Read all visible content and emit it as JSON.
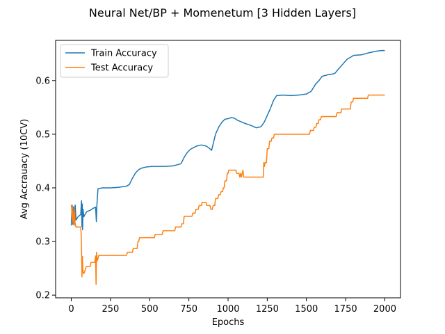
{
  "chart_data": {
    "type": "line",
    "title": "Neural Net/BP + Momenetum [3 Hidden Layers]",
    "xlabel": "Epochs",
    "ylabel": "Avg Accrauacy (10CV)",
    "xlim": [
      -100,
      2100
    ],
    "ylim": [
      0.195,
      0.675
    ],
    "xticks": [
      0,
      250,
      500,
      750,
      1000,
      1250,
      1500,
      1750,
      2000
    ],
    "yticks": [
      0.2,
      0.3,
      0.4,
      0.5,
      0.6
    ],
    "ytick_labels": [
      "0.2",
      "0.3",
      "0.4",
      "0.5",
      "0.6"
    ],
    "grid": false,
    "legend_position": "top-left",
    "series": [
      {
        "name": "Train Accuracy",
        "color": "#1f77b4",
        "points": [
          [
            0,
            0.33
          ],
          [
            5,
            0.368
          ],
          [
            10,
            0.332
          ],
          [
            15,
            0.365
          ],
          [
            20,
            0.335
          ],
          [
            25,
            0.368
          ],
          [
            30,
            0.34
          ],
          [
            40,
            0.345
          ],
          [
            50,
            0.348
          ],
          [
            60,
            0.35
          ],
          [
            65,
            0.376
          ],
          [
            68,
            0.328
          ],
          [
            70,
            0.37
          ],
          [
            72,
            0.322
          ],
          [
            75,
            0.36
          ],
          [
            80,
            0.346
          ],
          [
            90,
            0.352
          ],
          [
            100,
            0.356
          ],
          [
            120,
            0.358
          ],
          [
            140,
            0.362
          ],
          [
            155,
            0.364
          ],
          [
            160,
            0.337
          ],
          [
            163,
            0.366
          ],
          [
            170,
            0.398
          ],
          [
            180,
            0.399
          ],
          [
            200,
            0.4
          ],
          [
            250,
            0.4
          ],
          [
            300,
            0.401
          ],
          [
            350,
            0.403
          ],
          [
            370,
            0.406
          ],
          [
            390,
            0.418
          ],
          [
            410,
            0.428
          ],
          [
            430,
            0.434
          ],
          [
            450,
            0.437
          ],
          [
            480,
            0.439
          ],
          [
            520,
            0.44
          ],
          [
            600,
            0.44
          ],
          [
            650,
            0.441
          ],
          [
            700,
            0.445
          ],
          [
            720,
            0.457
          ],
          [
            740,
            0.466
          ],
          [
            760,
            0.472
          ],
          [
            800,
            0.478
          ],
          [
            830,
            0.48
          ],
          [
            860,
            0.478
          ],
          [
            880,
            0.474
          ],
          [
            895,
            0.47
          ],
          [
            905,
            0.482
          ],
          [
            920,
            0.5
          ],
          [
            940,
            0.513
          ],
          [
            960,
            0.522
          ],
          [
            980,
            0.528
          ],
          [
            1000,
            0.529
          ],
          [
            1020,
            0.531
          ],
          [
            1040,
            0.53
          ],
          [
            1060,
            0.526
          ],
          [
            1100,
            0.521
          ],
          [
            1150,
            0.516
          ],
          [
            1180,
            0.512
          ],
          [
            1210,
            0.514
          ],
          [
            1230,
            0.522
          ],
          [
            1250,
            0.535
          ],
          [
            1270,
            0.548
          ],
          [
            1290,
            0.563
          ],
          [
            1310,
            0.572
          ],
          [
            1350,
            0.573
          ],
          [
            1400,
            0.572
          ],
          [
            1450,
            0.573
          ],
          [
            1500,
            0.575
          ],
          [
            1530,
            0.58
          ],
          [
            1560,
            0.594
          ],
          [
            1580,
            0.6
          ],
          [
            1600,
            0.608
          ],
          [
            1640,
            0.611
          ],
          [
            1680,
            0.613
          ],
          [
            1700,
            0.62
          ],
          [
            1730,
            0.63
          ],
          [
            1760,
            0.64
          ],
          [
            1790,
            0.645
          ],
          [
            1800,
            0.647
          ],
          [
            1850,
            0.648
          ],
          [
            1900,
            0.652
          ],
          [
            1950,
            0.655
          ],
          [
            1980,
            0.656
          ],
          [
            2000,
            0.656
          ]
        ]
      },
      {
        "name": "Test Accuracy",
        "color": "#ff7f0e",
        "points": [
          [
            0,
            0.368
          ],
          [
            3,
            0.36
          ],
          [
            6,
            0.34
          ],
          [
            9,
            0.365
          ],
          [
            12,
            0.335
          ],
          [
            15,
            0.355
          ],
          [
            18,
            0.33
          ],
          [
            21,
            0.36
          ],
          [
            24,
            0.335
          ],
          [
            27,
            0.33
          ],
          [
            30,
            0.327
          ],
          [
            60,
            0.327
          ],
          [
            63,
            0.313
          ],
          [
            66,
            0.273
          ],
          [
            68,
            0.234
          ],
          [
            71,
            0.272
          ],
          [
            74,
            0.244
          ],
          [
            80,
            0.24
          ],
          [
            90,
            0.248
          ],
          [
            95,
            0.253
          ],
          [
            100,
            0.253
          ],
          [
            120,
            0.253
          ],
          [
            125,
            0.261
          ],
          [
            150,
            0.261
          ],
          [
            155,
            0.273
          ],
          [
            158,
            0.22
          ],
          [
            161,
            0.28
          ],
          [
            165,
            0.264
          ],
          [
            170,
            0.268
          ],
          [
            175,
            0.274
          ],
          [
            350,
            0.274
          ],
          [
            360,
            0.28
          ],
          [
            390,
            0.28
          ],
          [
            395,
            0.287
          ],
          [
            420,
            0.287
          ],
          [
            425,
            0.3
          ],
          [
            430,
            0.3
          ],
          [
            435,
            0.307
          ],
          [
            530,
            0.307
          ],
          [
            535,
            0.313
          ],
          [
            580,
            0.313
          ],
          [
            585,
            0.32
          ],
          [
            660,
            0.32
          ],
          [
            665,
            0.327
          ],
          [
            700,
            0.327
          ],
          [
            705,
            0.333
          ],
          [
            715,
            0.333
          ],
          [
            720,
            0.347
          ],
          [
            770,
            0.347
          ],
          [
            775,
            0.353
          ],
          [
            790,
            0.353
          ],
          [
            795,
            0.36
          ],
          [
            810,
            0.36
          ],
          [
            815,
            0.367
          ],
          [
            830,
            0.367
          ],
          [
            835,
            0.373
          ],
          [
            860,
            0.373
          ],
          [
            865,
            0.367
          ],
          [
            885,
            0.367
          ],
          [
            890,
            0.36
          ],
          [
            900,
            0.36
          ],
          [
            905,
            0.367
          ],
          [
            915,
            0.367
          ],
          [
            920,
            0.38
          ],
          [
            935,
            0.38
          ],
          [
            940,
            0.387
          ],
          [
            950,
            0.387
          ],
          [
            955,
            0.393
          ],
          [
            965,
            0.393
          ],
          [
            970,
            0.4
          ],
          [
            975,
            0.4
          ],
          [
            980,
            0.413
          ],
          [
            990,
            0.413
          ],
          [
            995,
            0.427
          ],
          [
            1000,
            0.427
          ],
          [
            1005,
            0.433
          ],
          [
            1050,
            0.433
          ],
          [
            1055,
            0.427
          ],
          [
            1070,
            0.427
          ],
          [
            1075,
            0.42
          ],
          [
            1080,
            0.427
          ],
          [
            1085,
            0.42
          ],
          [
            1095,
            0.433
          ],
          [
            1100,
            0.42
          ],
          [
            1225,
            0.42
          ],
          [
            1228,
            0.447
          ],
          [
            1232,
            0.44
          ],
          [
            1236,
            0.447
          ],
          [
            1245,
            0.447
          ],
          [
            1250,
            0.473
          ],
          [
            1260,
            0.473
          ],
          [
            1265,
            0.487
          ],
          [
            1275,
            0.487
          ],
          [
            1280,
            0.493
          ],
          [
            1290,
            0.493
          ],
          [
            1295,
            0.5
          ],
          [
            1520,
            0.5
          ],
          [
            1525,
            0.507
          ],
          [
            1545,
            0.507
          ],
          [
            1550,
            0.513
          ],
          [
            1560,
            0.513
          ],
          [
            1565,
            0.52
          ],
          [
            1575,
            0.52
          ],
          [
            1580,
            0.527
          ],
          [
            1590,
            0.527
          ],
          [
            1595,
            0.533
          ],
          [
            1690,
            0.533
          ],
          [
            1695,
            0.54
          ],
          [
            1720,
            0.54
          ],
          [
            1725,
            0.547
          ],
          [
            1780,
            0.547
          ],
          [
            1785,
            0.56
          ],
          [
            1795,
            0.56
          ],
          [
            1800,
            0.567
          ],
          [
            1890,
            0.567
          ],
          [
            1895,
            0.573
          ],
          [
            2000,
            0.573
          ]
        ]
      }
    ]
  }
}
